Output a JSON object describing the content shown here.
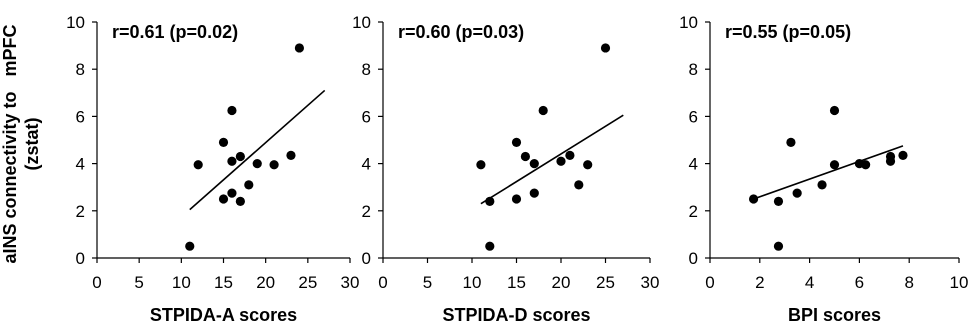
{
  "figure": {
    "ylabel_line1": "aINS connectivity to   mPFC",
    "ylabel_line2": "(zstat)"
  },
  "chart_data": [
    {
      "type": "scatter",
      "title": "",
      "annotation": "r=0.61 (p=0.02)",
      "xlabel": "STPIDA-A scores",
      "ylabel": "aINS connectivity to mPFC (zstat)",
      "xlim": [
        0,
        30
      ],
      "ylim": [
        0,
        10
      ],
      "xticks": [
        0,
        5,
        10,
        15,
        20,
        25,
        30
      ],
      "yticks": [
        0,
        2,
        4,
        6,
        8,
        10
      ],
      "grid": false,
      "points": [
        {
          "x": 11,
          "y": 0.5
        },
        {
          "x": 12,
          "y": 3.95
        },
        {
          "x": 15,
          "y": 2.5
        },
        {
          "x": 15,
          "y": 4.9
        },
        {
          "x": 16,
          "y": 6.25
        },
        {
          "x": 16,
          "y": 4.1
        },
        {
          "x": 16,
          "y": 2.75
        },
        {
          "x": 17,
          "y": 4.3
        },
        {
          "x": 17,
          "y": 2.4
        },
        {
          "x": 18,
          "y": 3.1
        },
        {
          "x": 19,
          "y": 4.0
        },
        {
          "x": 21,
          "y": 3.95
        },
        {
          "x": 23,
          "y": 4.35
        },
        {
          "x": 24,
          "y": 8.9
        }
      ],
      "fit_line": {
        "x": [
          11,
          27
        ],
        "y": [
          2.05,
          7.1
        ]
      }
    },
    {
      "type": "scatter",
      "title": "",
      "annotation": "r=0.60  (p=0.03)",
      "xlabel": "STPIDA-D scores",
      "ylabel": "",
      "xlim": [
        0,
        30
      ],
      "ylim": [
        0,
        10
      ],
      "xticks": [
        0,
        5,
        10,
        15,
        20,
        25,
        30
      ],
      "yticks": [
        0,
        2,
        4,
        6,
        8,
        10
      ],
      "grid": false,
      "points": [
        {
          "x": 11,
          "y": 3.95
        },
        {
          "x": 12,
          "y": 0.5
        },
        {
          "x": 12,
          "y": 2.4
        },
        {
          "x": 15,
          "y": 4.9
        },
        {
          "x": 15,
          "y": 2.5
        },
        {
          "x": 16,
          "y": 4.3
        },
        {
          "x": 17,
          "y": 4.0
        },
        {
          "x": 17,
          "y": 2.75
        },
        {
          "x": 18,
          "y": 6.25
        },
        {
          "x": 20,
          "y": 4.1
        },
        {
          "x": 21,
          "y": 4.35
        },
        {
          "x": 22,
          "y": 3.1
        },
        {
          "x": 23,
          "y": 3.95
        },
        {
          "x": 25,
          "y": 8.9
        }
      ],
      "fit_line": {
        "x": [
          11,
          27
        ],
        "y": [
          2.3,
          6.05
        ]
      }
    },
    {
      "type": "scatter",
      "title": "",
      "annotation": "r=0.55  (p=0.05)",
      "xlabel": "BPI scores",
      "ylabel": "",
      "xlim": [
        0,
        10
      ],
      "ylim": [
        0,
        10
      ],
      "xticks": [
        0,
        2,
        4,
        6,
        8,
        10
      ],
      "yticks": [
        0,
        2,
        4,
        6,
        8,
        10
      ],
      "grid": false,
      "points": [
        {
          "x": 1.75,
          "y": 2.5
        },
        {
          "x": 2.75,
          "y": 0.5
        },
        {
          "x": 2.75,
          "y": 2.4
        },
        {
          "x": 3.25,
          "y": 4.9
        },
        {
          "x": 3.5,
          "y": 2.75
        },
        {
          "x": 4.5,
          "y": 3.1
        },
        {
          "x": 5.0,
          "y": 6.25
        },
        {
          "x": 5.0,
          "y": 3.95
        },
        {
          "x": 6.0,
          "y": 4.0
        },
        {
          "x": 6.25,
          "y": 3.95
        },
        {
          "x": 7.25,
          "y": 4.3
        },
        {
          "x": 7.25,
          "y": 4.1
        },
        {
          "x": 7.75,
          "y": 4.35
        }
      ],
      "fit_line": {
        "x": [
          1.75,
          7.75
        ],
        "y": [
          2.5,
          4.75
        ]
      }
    }
  ]
}
